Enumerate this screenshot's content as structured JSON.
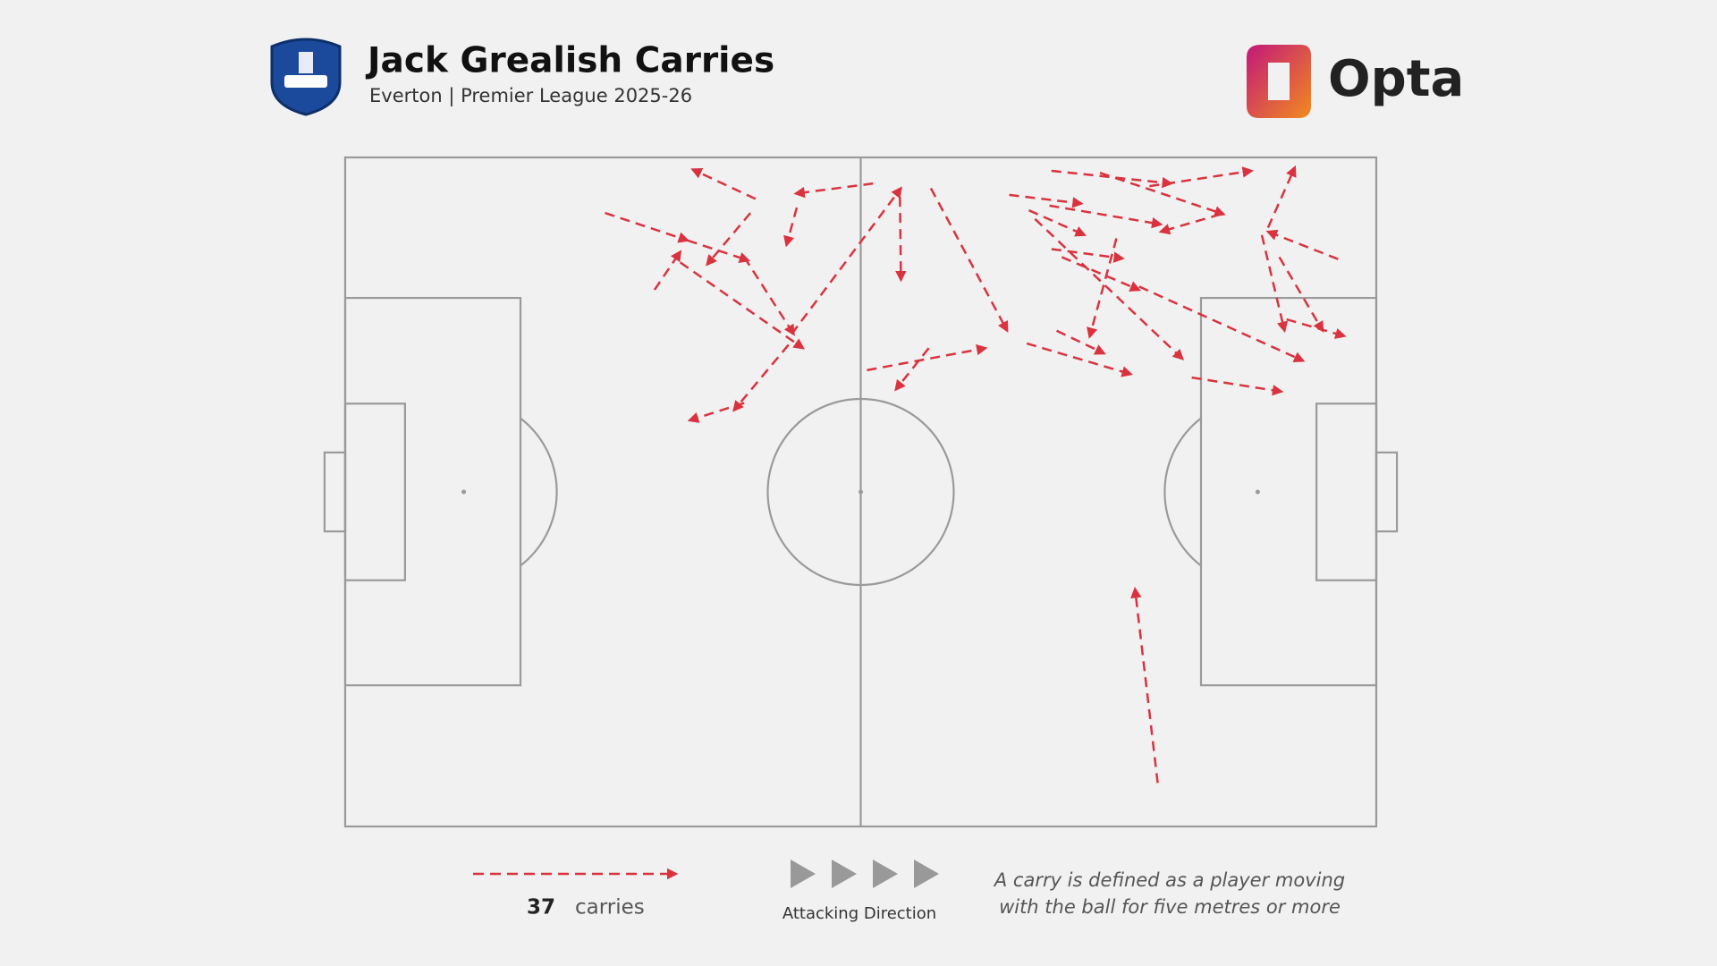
{
  "chart_data": {
    "type": "carry-map",
    "title": "Jack Grealish Carries",
    "subtitle": "Everton | Premier League 2025-26",
    "brand": "Opta",
    "color": "#d9333f",
    "xlim": [
      0,
      100
    ],
    "ylim": [
      0,
      100
    ],
    "count": 37,
    "count_label": "carries",
    "direction_label": "Attacking Direction",
    "note": [
      "A carry is defined as a player moving",
      "with the ball for five metres or more"
    ],
    "carries": [
      {
        "start": [
          39.8,
          93.8
        ],
        "end": [
          33.7,
          98.2
        ]
      },
      {
        "start": [
          51.2,
          96.1
        ],
        "end": [
          43.7,
          94.6
        ]
      },
      {
        "start": [
          43.8,
          92.5
        ],
        "end": [
          42.8,
          86.9
        ]
      },
      {
        "start": [
          25.2,
          91.7
        ],
        "end": [
          33.2,
          87.6
        ]
      },
      {
        "start": [
          33.2,
          87.6
        ],
        "end": [
          39.1,
          84.6
        ]
      },
      {
        "start": [
          39.3,
          91.7
        ],
        "end": [
          35.1,
          84.0
        ]
      },
      {
        "start": [
          30.0,
          80.2
        ],
        "end": [
          32.5,
          85.9
        ]
      },
      {
        "start": [
          32.5,
          84.3
        ],
        "end": [
          44.4,
          71.5
        ]
      },
      {
        "start": [
          38.7,
          85.1
        ],
        "end": [
          43.5,
          73.6
        ]
      },
      {
        "start": [
          43.3,
          73.6
        ],
        "end": [
          53.9,
          95.4
        ]
      },
      {
        "start": [
          43.0,
          72.0
        ],
        "end": [
          37.7,
          62.2
        ]
      },
      {
        "start": [
          38.7,
          63.3
        ],
        "end": [
          33.4,
          60.7
        ]
      },
      {
        "start": [
          53.8,
          94.1
        ],
        "end": [
          53.9,
          81.7
        ]
      },
      {
        "start": [
          56.8,
          95.4
        ],
        "end": [
          64.2,
          74.1
        ]
      },
      {
        "start": [
          50.6,
          68.2
        ],
        "end": [
          62.1,
          71.5
        ]
      },
      {
        "start": [
          56.6,
          71.5
        ],
        "end": [
          53.4,
          65.3
        ]
      },
      {
        "start": [
          68.5,
          98.0
        ],
        "end": [
          80.1,
          96.1
        ]
      },
      {
        "start": [
          78.0,
          95.7
        ],
        "end": [
          87.9,
          98.0
        ]
      },
      {
        "start": [
          64.4,
          94.4
        ],
        "end": [
          71.4,
          93.1
        ]
      },
      {
        "start": [
          68.3,
          92.8
        ],
        "end": [
          79.1,
          90.0
        ]
      },
      {
        "start": [
          73.2,
          97.7
        ],
        "end": [
          85.2,
          91.5
        ]
      },
      {
        "start": [
          84.9,
          91.5
        ],
        "end": [
          79.1,
          88.9
        ]
      },
      {
        "start": [
          66.3,
          92.1
        ],
        "end": [
          71.7,
          88.4
        ]
      },
      {
        "start": [
          68.5,
          86.3
        ],
        "end": [
          75.4,
          84.9
        ]
      },
      {
        "start": [
          74.8,
          87.9
        ],
        "end": [
          72.2,
          73.2
        ]
      },
      {
        "start": [
          66.9,
          90.8
        ],
        "end": [
          81.2,
          69.9
        ]
      },
      {
        "start": [
          69.5,
          85.1
        ],
        "end": [
          77.0,
          80.2
        ]
      },
      {
        "start": [
          77.0,
          80.7
        ],
        "end": [
          92.9,
          69.6
        ]
      },
      {
        "start": [
          69.0,
          74.1
        ],
        "end": [
          73.6,
          70.7
        ]
      },
      {
        "start": [
          66.1,
          72.2
        ],
        "end": [
          76.2,
          67.6
        ]
      },
      {
        "start": [
          82.1,
          67.1
        ],
        "end": [
          90.8,
          65.0
        ]
      },
      {
        "start": [
          89.5,
          89.5
        ],
        "end": [
          92.1,
          98.5
        ]
      },
      {
        "start": [
          96.3,
          84.8
        ],
        "end": [
          89.5,
          88.9
        ]
      },
      {
        "start": [
          88.9,
          88.4
        ],
        "end": [
          91.1,
          74.1
        ]
      },
      {
        "start": [
          90.6,
          85.1
        ],
        "end": [
          94.8,
          74.1
        ]
      },
      {
        "start": [
          91.3,
          75.8
        ],
        "end": [
          96.9,
          73.3
        ]
      },
      {
        "start": [
          78.8,
          6.5
        ],
        "end": [
          76.6,
          35.5
        ]
      }
    ]
  }
}
